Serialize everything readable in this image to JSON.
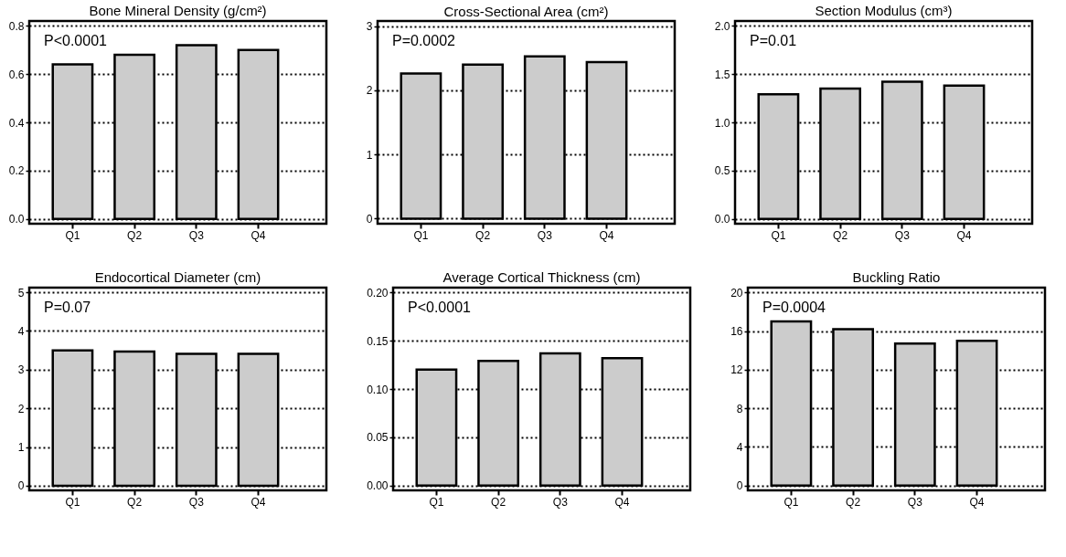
{
  "chart_data": [
    {
      "type": "bar",
      "title": "Bone Mineral Density (g/cm²)",
      "categories": [
        "Q1",
        "Q2",
        "Q3",
        "Q4"
      ],
      "values": [
        0.64,
        0.68,
        0.72,
        0.7
      ],
      "color": "#cccccc",
      "ylim": [
        -0.02,
        0.82
      ],
      "yticks": [
        {
          "value": 0,
          "label": "0.0"
        },
        0.2,
        0.4,
        0.6,
        0.8
      ],
      "grid": "y",
      "annotations": [
        "P<0.0001"
      ]
    },
    {
      "type": "bar",
      "title": "Cross-Sectional Area (cm²)",
      "categories": [
        "Q1",
        "Q2",
        "Q3",
        "Q4"
      ],
      "values": [
        2.26,
        2.4,
        2.53,
        2.44
      ],
      "color": "#cccccc",
      "ylim": [
        -0.08,
        3.08
      ],
      "yticks": [
        0,
        1,
        2,
        3
      ],
      "grid": "y",
      "annotations": [
        "P=0.0002"
      ]
    },
    {
      "type": "bar",
      "title": "Section Modulus (cm³)",
      "categories": [
        "Q1",
        "Q2",
        "Q3",
        "Q4"
      ],
      "values": [
        1.29,
        1.35,
        1.42,
        1.38
      ],
      "color": "#cccccc",
      "ylim": [
        -0.05,
        2.05
      ],
      "yticks": [
        {
          "value": 0,
          "label": "0.0"
        },
        0.5,
        {
          "value": 1,
          "label": "1.0"
        },
        1.5,
        {
          "value": 2,
          "label": "2.0"
        }
      ],
      "grid": "y",
      "annotations": [
        "P=0.01"
      ]
    },
    {
      "type": "bar",
      "title": "Endocortical Diameter (cm)",
      "categories": [
        "Q1",
        "Q2",
        "Q3",
        "Q4"
      ],
      "values": [
        3.5,
        3.47,
        3.41,
        3.41
      ],
      "color": "#cccccc",
      "ylim": [
        -0.12,
        5.12
      ],
      "yticks": [
        0,
        1,
        2,
        3,
        4,
        5
      ],
      "grid": "y",
      "annotations": [
        "P=0.07"
      ]
    },
    {
      "type": "bar",
      "title": "Average Cortical Thickness (cm)",
      "categories": [
        "Q1",
        "Q2",
        "Q3",
        "Q4"
      ],
      "values": [
        0.12,
        0.129,
        0.137,
        0.132
      ],
      "color": "#cccccc",
      "ylim": [
        -0.005,
        0.205
      ],
      "yticks": [
        {
          "value": 0,
          "label": "0.00"
        },
        0.05,
        {
          "value": 0.1,
          "label": "0.10"
        },
        0.15,
        {
          "value": 0.2,
          "label": "0.20"
        }
      ],
      "grid": "y",
      "annotations": [
        "P<0.0001"
      ]
    },
    {
      "type": "bar",
      "title": "Buckling Ratio",
      "categories": [
        "Q1",
        "Q2",
        "Q3",
        "Q4"
      ],
      "values": [
        17.0,
        16.2,
        14.7,
        15.0
      ],
      "color": "#cccccc",
      "ylim": [
        -0.5,
        20.5
      ],
      "yticks": [
        0,
        4,
        8,
        12,
        16,
        20
      ],
      "grid": "y",
      "annotations": [
        "P=0.0004"
      ]
    }
  ]
}
